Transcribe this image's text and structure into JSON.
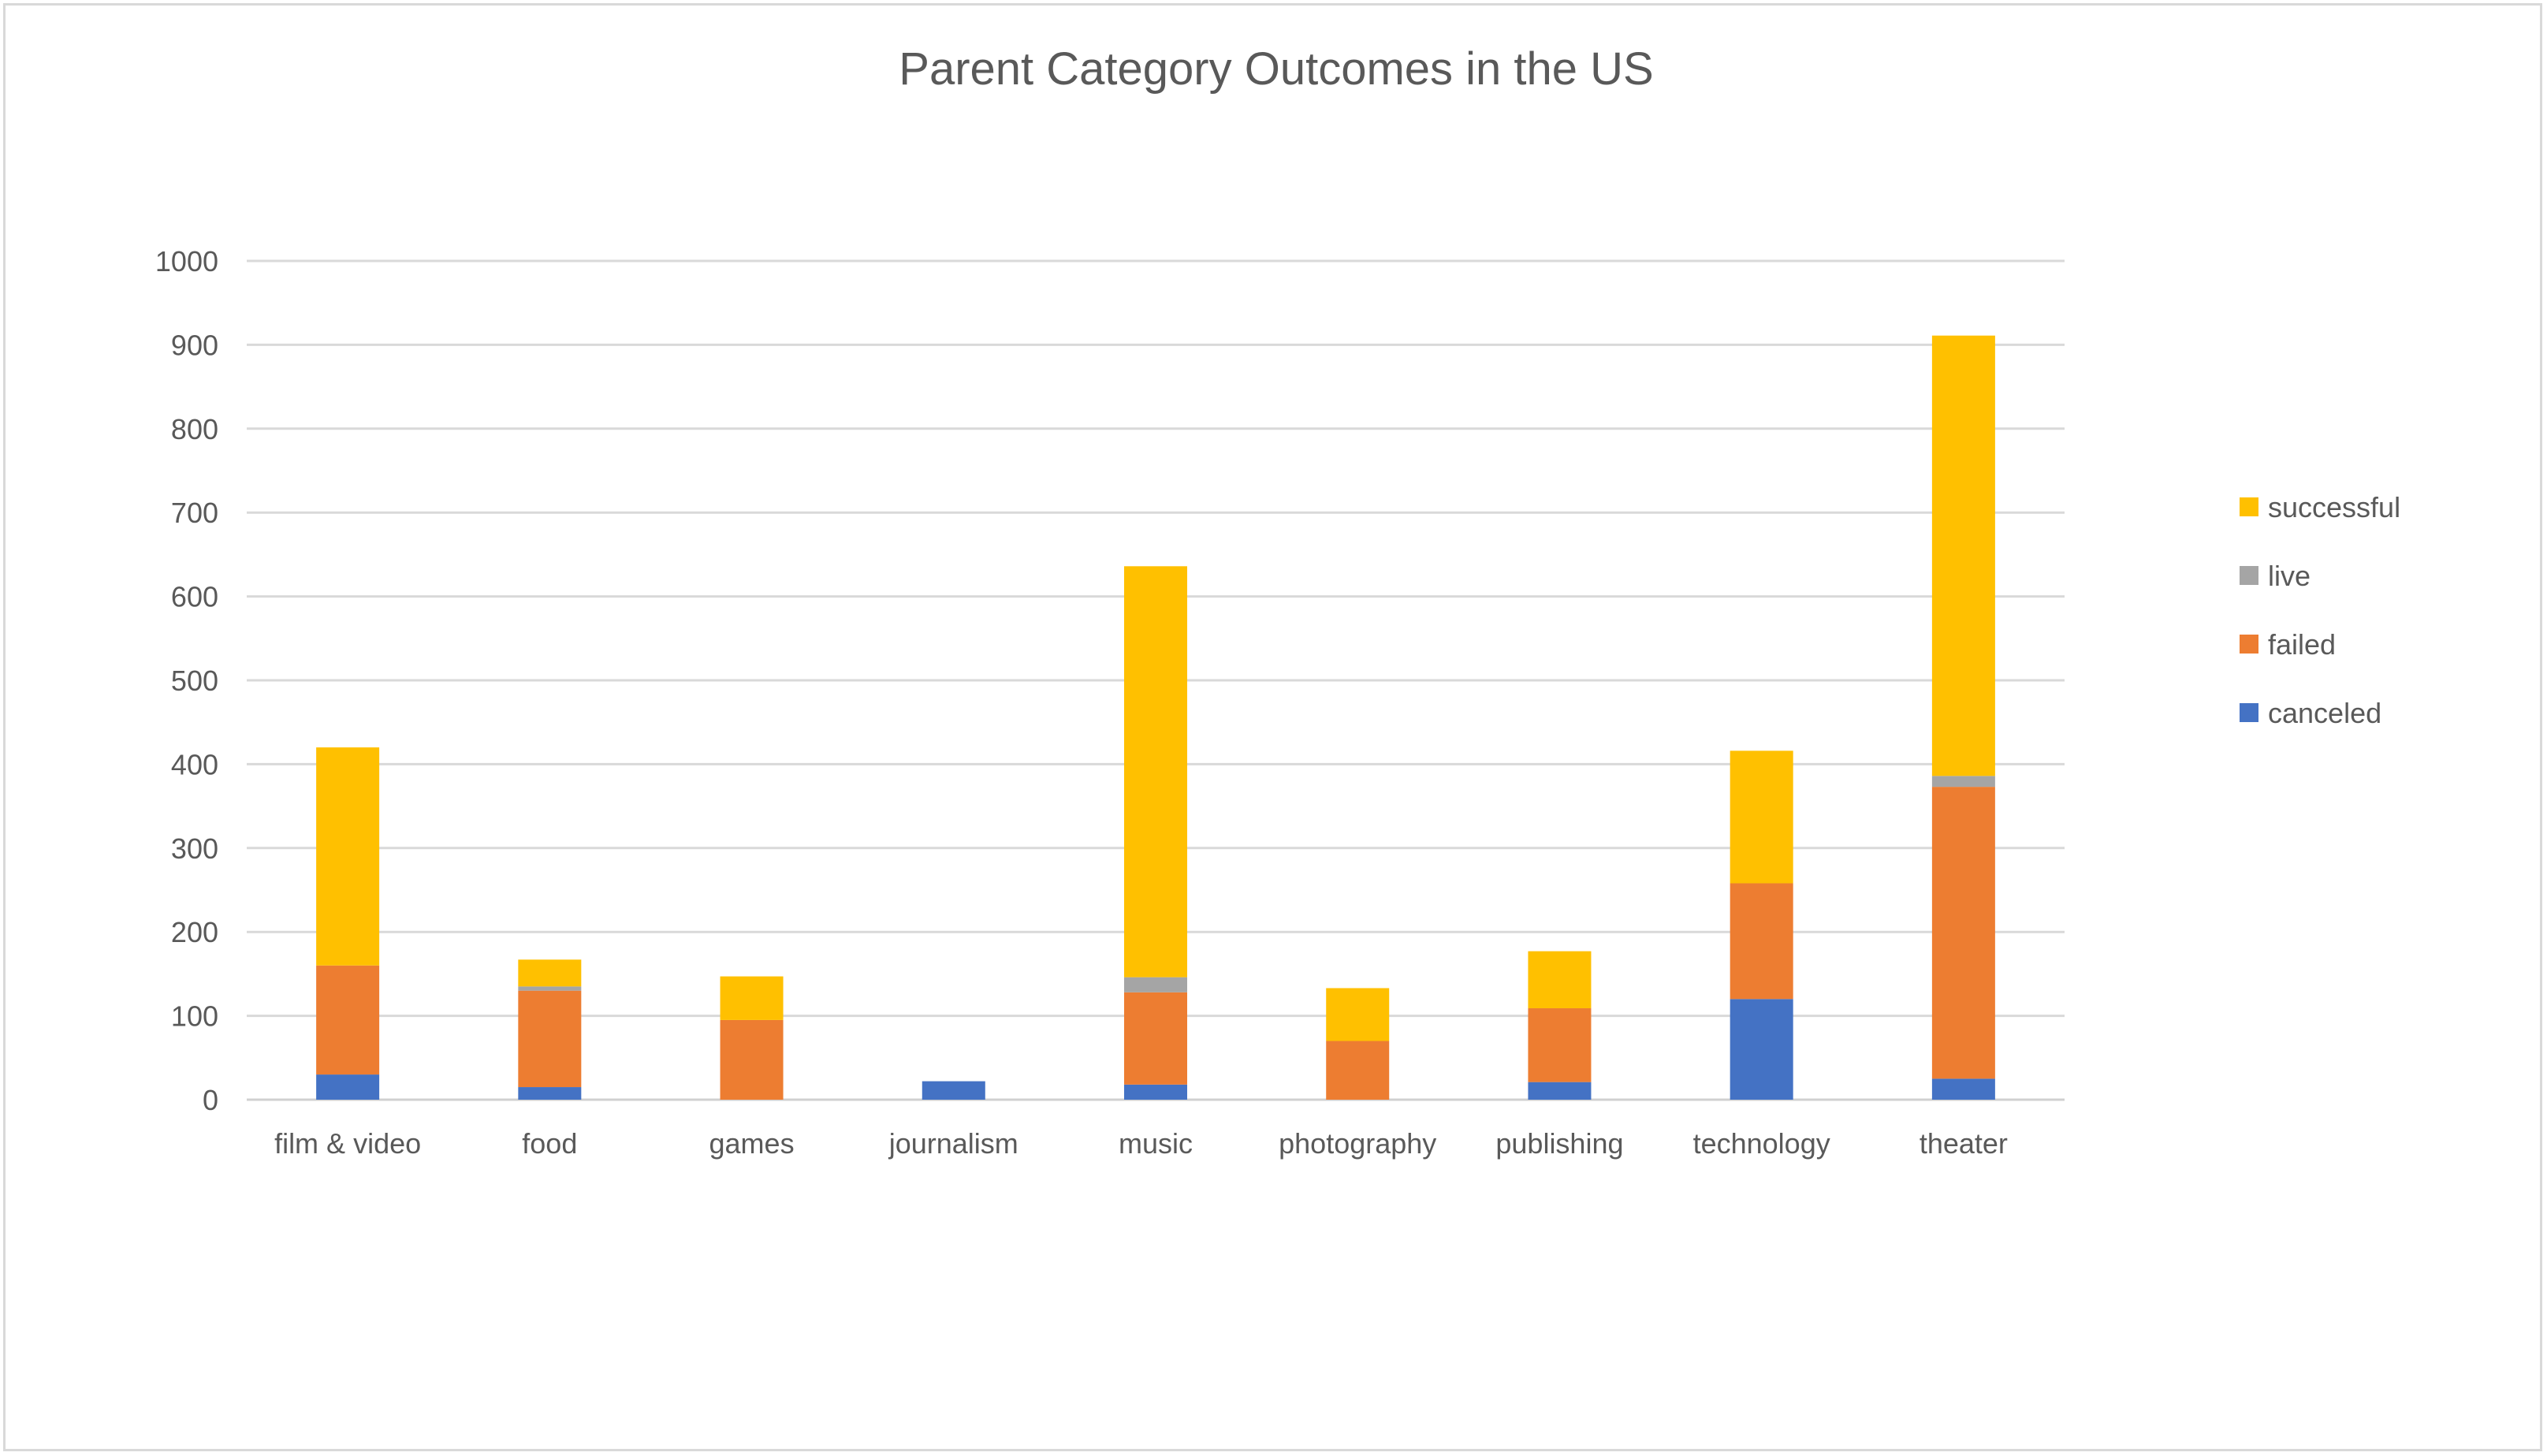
{
  "chart_data": {
    "type": "bar",
    "stacked": true,
    "title": "Parent Category Outcomes in the US",
    "xlabel": "",
    "ylabel": "",
    "ylim": [
      0,
      1000
    ],
    "yticks": [
      0,
      100,
      200,
      300,
      400,
      500,
      600,
      700,
      800,
      900,
      1000
    ],
    "grid": true,
    "legend_position": "right",
    "categories": [
      "film & video",
      "food",
      "games",
      "journalism",
      "music",
      "photography",
      "publishing",
      "technology",
      "theater"
    ],
    "series": [
      {
        "name": "canceled",
        "color": "#4472c4",
        "values": [
          30,
          15,
          0,
          22,
          18,
          0,
          21,
          120,
          25
        ]
      },
      {
        "name": "failed",
        "color": "#ed7d31",
        "values": [
          130,
          115,
          95,
          0,
          110,
          70,
          88,
          138,
          348
        ]
      },
      {
        "name": "live",
        "color": "#a5a5a5",
        "values": [
          0,
          5,
          0,
          0,
          18,
          0,
          0,
          0,
          13
        ]
      },
      {
        "name": "successful",
        "color": "#ffc000",
        "values": [
          260,
          32,
          52,
          0,
          490,
          63,
          68,
          158,
          525
        ]
      }
    ],
    "legend_order": [
      "successful",
      "live",
      "failed",
      "canceled"
    ]
  }
}
